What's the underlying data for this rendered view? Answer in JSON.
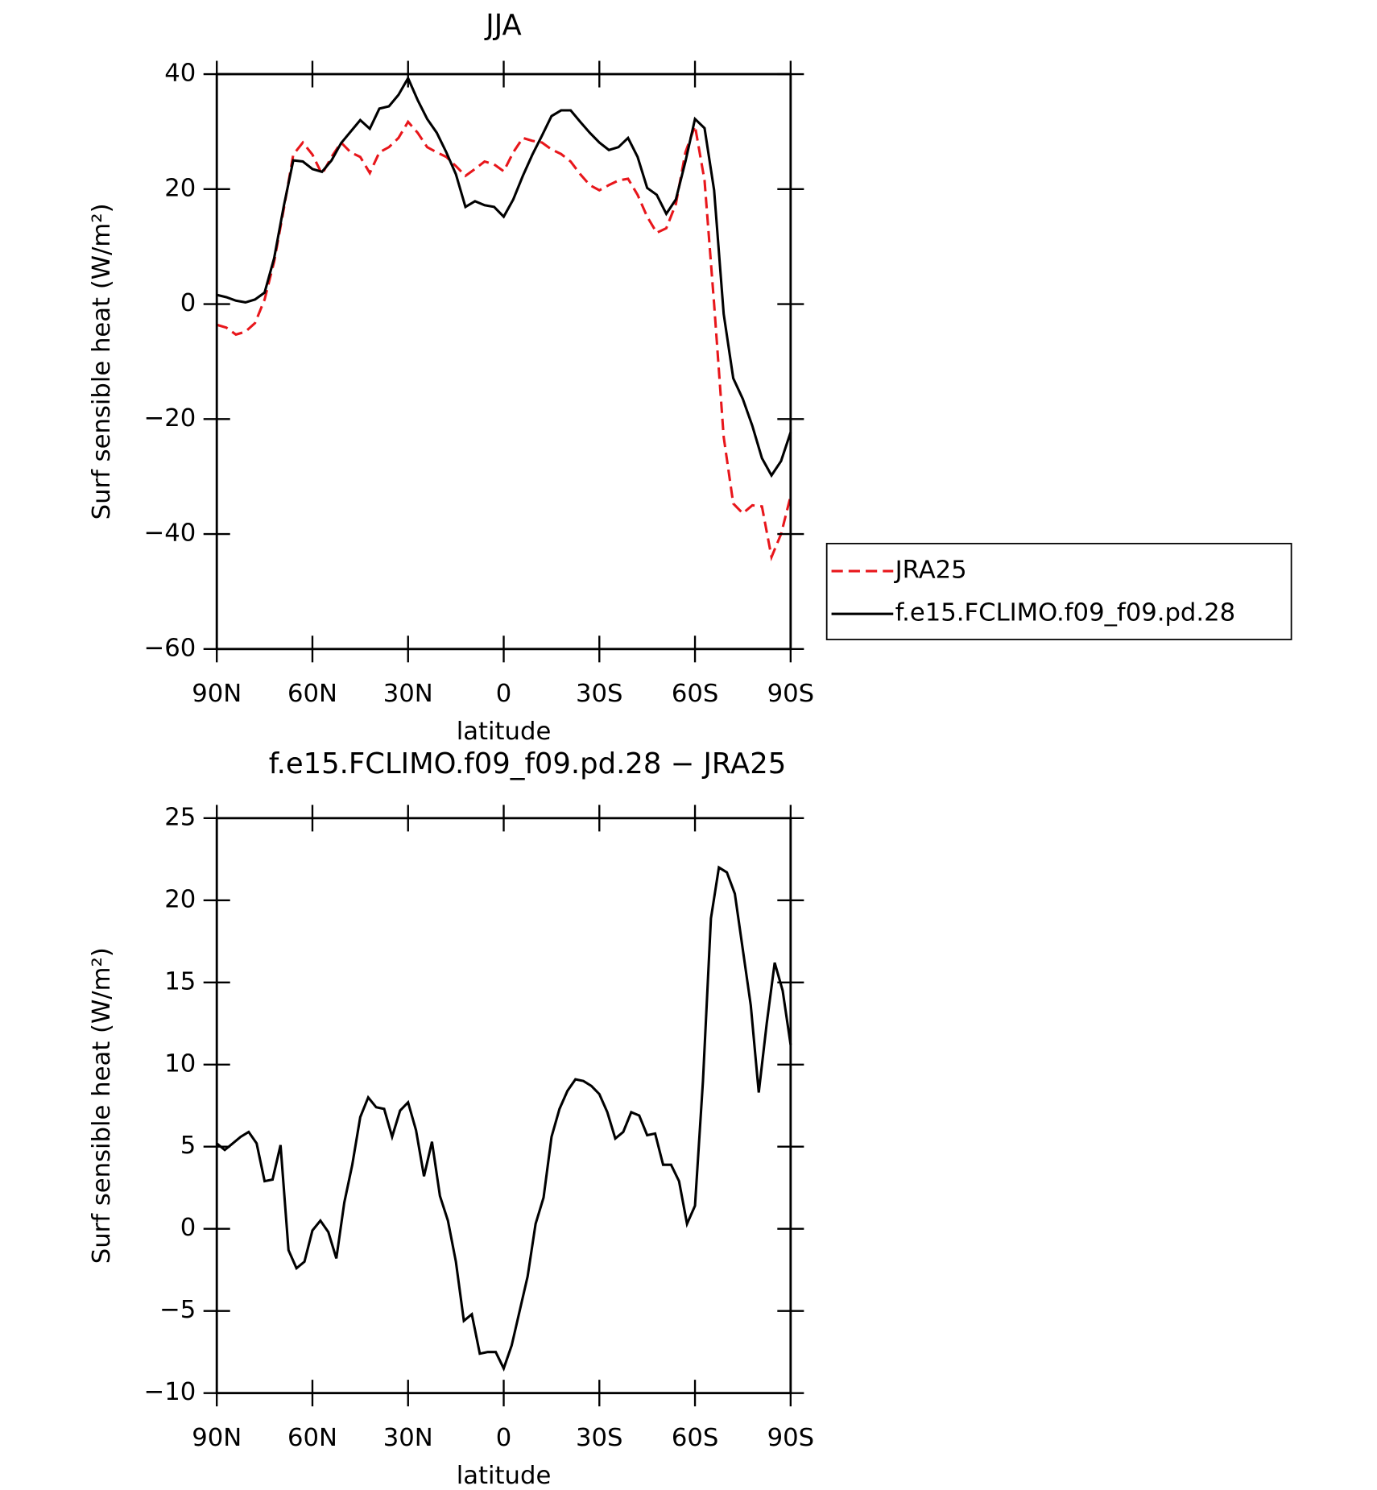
{
  "chart_data": [
    {
      "type": "line",
      "title": "JJA",
      "xlabel": "latitude",
      "ylabel": "Surf sensible heat (W/m²)",
      "x": [
        90,
        87,
        84,
        81,
        78,
        75,
        72,
        69,
        66,
        63,
        60,
        57,
        54,
        51,
        48,
        45,
        42,
        39,
        36,
        33,
        30,
        27,
        24,
        21,
        18,
        15,
        12,
        9,
        6,
        3,
        0,
        -3,
        -6,
        -9,
        -12,
        -15,
        -18,
        -21,
        -24,
        -27,
        -30,
        -33,
        -36,
        -39,
        -42,
        -45,
        -48,
        -51,
        -54,
        -57,
        -60,
        -63,
        -66,
        -69,
        -72,
        -75,
        -78,
        -81,
        -84,
        -87,
        -90
      ],
      "series": [
        {
          "name": "JRA25",
          "color": "#e8161b",
          "dash": true,
          "values": [
            -3.6,
            -4.1,
            -5.3,
            -4.8,
            -3.3,
            0.8,
            7.4,
            16.5,
            26,
            28.1,
            26,
            22.6,
            25.6,
            28.1,
            26.4,
            25.6,
            22.8,
            26.4,
            27.3,
            28.9,
            31.7,
            29.8,
            27.3,
            26.4,
            25.6,
            24,
            22.3,
            23.5,
            24.8,
            24.3,
            23.1,
            26.4,
            28.9,
            28.4,
            28.1,
            26.9,
            26.1,
            24.8,
            22.6,
            20.7,
            19.8,
            20.7,
            21.5,
            21.8,
            19,
            15.2,
            12.4,
            13.2,
            17.4,
            26.4,
            31,
            21.5,
            0,
            -23.1,
            -34.7,
            -36.4,
            -35,
            -35.2,
            -44,
            -40,
            -33.4
          ]
        },
        {
          "name": "f.e15.FCLIMO.f09_f09.pd.28",
          "color": "#000000",
          "dash": false,
          "values": [
            1.6,
            1.2,
            0.6,
            0.3,
            0.8,
            2,
            8,
            17,
            25,
            24.8,
            23.5,
            23,
            25,
            28,
            30,
            32,
            30.5,
            34,
            34.4,
            36.4,
            39.3,
            35.5,
            32.2,
            29.8,
            26.4,
            22.6,
            16.9,
            17.9,
            17.2,
            16.9,
            15.2,
            18.2,
            22.3,
            26,
            29.3,
            32.7,
            33.7,
            33.7,
            31.7,
            29.8,
            28.1,
            26.8,
            27.3,
            28.9,
            25.6,
            20.2,
            19,
            15.7,
            18.2,
            24.8,
            32.2,
            30.6,
            19.8,
            -1.7,
            -12.9,
            -16.5,
            -21.2,
            -26.8,
            -29.8,
            -27.3,
            -22.3
          ]
        }
      ],
      "xlim": [
        90,
        -90
      ],
      "xticks": [
        {
          "value": 90,
          "label": "90N"
        },
        {
          "value": 60,
          "label": "60N"
        },
        {
          "value": 30,
          "label": "30N"
        },
        0,
        {
          "value": -30,
          "label": "30S"
        },
        {
          "value": -60,
          "label": "60S"
        },
        {
          "value": -90,
          "label": "90S"
        }
      ],
      "ylim": [
        -60,
        40
      ],
      "yticks": [
        {
          "value": -60,
          "label": "−60"
        },
        {
          "value": -40,
          "label": "−40"
        },
        {
          "value": -20,
          "label": "−20"
        },
        0,
        20,
        40
      ],
      "legend": "right"
    },
    {
      "type": "line",
      "title": "f.e15.FCLIMO.f09_f09.pd.28 − JRA25",
      "xlabel": "latitude",
      "ylabel": "Surf sensible heat (W/m²)",
      "x": [
        90,
        87.5,
        85,
        82.5,
        80,
        77.5,
        75,
        72.5,
        70,
        67.5,
        65,
        62.5,
        60,
        57.5,
        55,
        52.5,
        50,
        47.5,
        45,
        42.5,
        40,
        37.5,
        35,
        32.5,
        30,
        27.5,
        25,
        22.5,
        20,
        17.5,
        15,
        12.5,
        10,
        7.5,
        5,
        2.5,
        0,
        -2.5,
        -5,
        -7.5,
        -10,
        -12.5,
        -15,
        -17.5,
        -20,
        -22.5,
        -25,
        -27.5,
        -30,
        -32.5,
        -35,
        -37.5,
        -40,
        -42.5,
        -45,
        -47.5,
        -50,
        -52.5,
        -55,
        -57.5,
        -60,
        -62.5,
        -65,
        -67.5,
        -70,
        -72.5,
        -75,
        -77.5,
        -80,
        -82.5,
        -85,
        -87.5,
        -90
      ],
      "series": [
        {
          "color": "#000000",
          "dash": false,
          "values": [
            5.2,
            4.8,
            5.2,
            5.6,
            5.9,
            5.2,
            2.9,
            3.0,
            5.1,
            -1.3,
            -2.4,
            -2.0,
            -0.1,
            0.5,
            -0.2,
            -1.8,
            1.6,
            3.9,
            6.8,
            8.0,
            7.4,
            7.3,
            5.6,
            7.2,
            7.7,
            6.0,
            3.2,
            5.3,
            2.0,
            0.5,
            -2.0,
            -5.6,
            -5.2,
            -7.6,
            -7.5,
            -7.5,
            -8.5,
            -7.1,
            -5.0,
            -2.9,
            0.3,
            1.9,
            5.6,
            7.3,
            8.4,
            9.1,
            9.0,
            8.7,
            8.2,
            7.1,
            5.5,
            5.9,
            7.1,
            6.9,
            5.7,
            5.8,
            3.9,
            3.9,
            2.9,
            0.3,
            1.4,
            9.0,
            18.9,
            22.0,
            21.7,
            20.4,
            17.0,
            13.6,
            8.3,
            12.5,
            16.2,
            14.5,
            11.2
          ]
        }
      ],
      "xlim": [
        90,
        -90
      ],
      "xticks": [
        {
          "value": 90,
          "label": "90N"
        },
        {
          "value": 60,
          "label": "60N"
        },
        {
          "value": 30,
          "label": "30N"
        },
        0,
        {
          "value": -30,
          "label": "30S"
        },
        {
          "value": -60,
          "label": "60S"
        },
        {
          "value": -90,
          "label": "90S"
        }
      ],
      "ylim": [
        -10,
        25
      ],
      "yticks": [
        {
          "value": -10,
          "label": "−10"
        },
        {
          "value": -5,
          "label": "−5"
        },
        0,
        5,
        10,
        15,
        20,
        25
      ]
    }
  ]
}
